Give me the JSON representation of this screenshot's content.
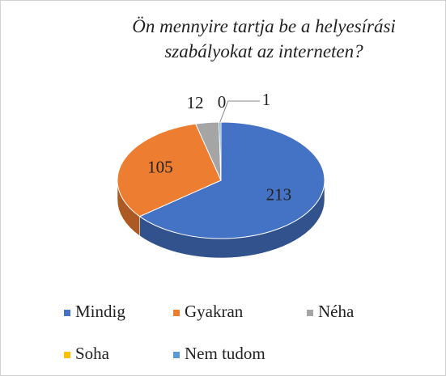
{
  "chart_data": {
    "type": "pie3d",
    "title": "Ön mennyire tartja be a helyesírási szabályokat az interneten?",
    "categories": [
      "Mindig",
      "Gyakran",
      "Néha",
      "Soha",
      "Nem tudom"
    ],
    "values": [
      213,
      105,
      12,
      0,
      1
    ],
    "colors": [
      "#4472c4",
      "#ed7d31",
      "#a5a5a5",
      "#ffc000",
      "#5b9bd5"
    ],
    "legend": "bottom"
  }
}
